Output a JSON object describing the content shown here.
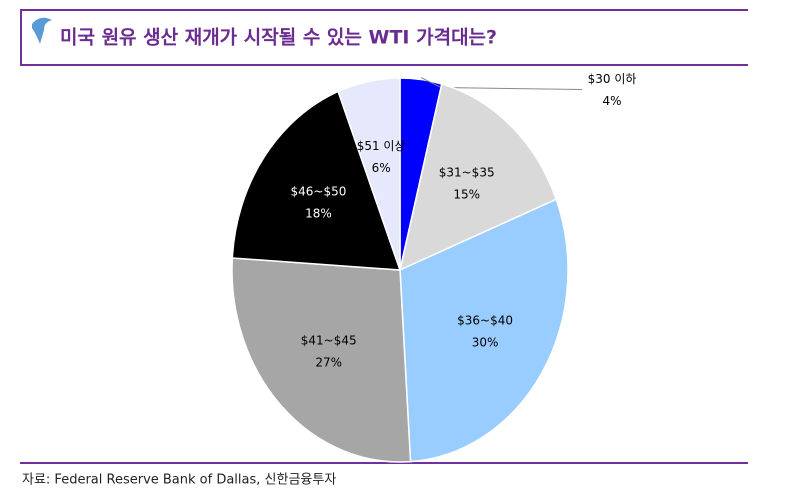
{
  "chart_data": {
    "type": "pie",
    "title": "미국 원유 생산 재개가 시작될 수 있는 WTI 가격대는?",
    "source": "자료: Federal Reserve Bank of Dallas, 신한금융투자",
    "categories": [
      "$30 이하",
      "$31~$35",
      "$36~$40",
      "$41~$45",
      "$46~$50",
      "$51 이상"
    ],
    "values": [
      4,
      15,
      30,
      27,
      18,
      6
    ],
    "value_labels": [
      "4%",
      "15%",
      "30%",
      "27%",
      "18%",
      "6%"
    ],
    "colors": [
      "#0000ff",
      "#d9d9d9",
      "#99ccff",
      "#a6a6a6",
      "#000000",
      "#e6e9fb"
    ]
  }
}
